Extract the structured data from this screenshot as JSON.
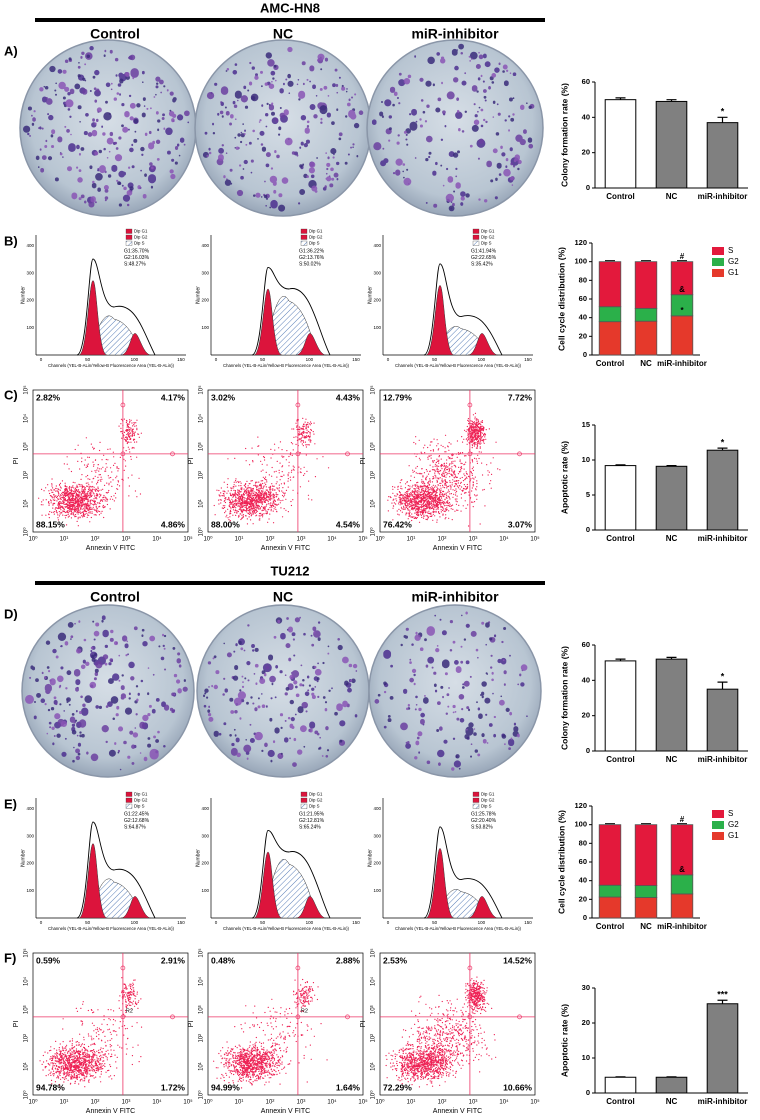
{
  "sections": [
    {
      "title": "AMC-HN8",
      "columns": [
        "Control",
        "NC",
        "miR-inhibitor"
      ],
      "colony": {
        "label": "A)",
        "chart": {
          "type": "bar",
          "ylabel": "Colony formation rate (%)",
          "categories": [
            "Control",
            "NC",
            "miR-inhibitor"
          ],
          "values": [
            50,
            49,
            37
          ],
          "errors": [
            1,
            1,
            3
          ],
          "colors": [
            "#ffffff",
            "#808080",
            "#808080"
          ],
          "ylim": [
            0,
            60
          ],
          "yticks": [
            0,
            20,
            40,
            60
          ],
          "annotations": [
            {
              "category": "miR-inhibitor",
              "text": "*"
            }
          ]
        }
      },
      "cycle": {
        "label": "B)",
        "legend": [
          "Dip G1",
          "Dip G2",
          "Dip S"
        ],
        "ylabel": "Number",
        "xlabel": "Channels (YEL-B-ALin/Yellow-B Fluorescence Area (YEL-B-ALin))",
        "xticks": [
          "0",
          "50",
          "100",
          "150"
        ],
        "yticks": [
          "100",
          "200",
          "300",
          "400"
        ],
        "histograms": [
          {
            "stats": [
              "G1:35.70%",
              "G2:16.03%",
              "S:48.27%"
            ]
          },
          {
            "stats": [
              "G1:36.22%",
              "G2:13.76%",
              "S:50.02%"
            ]
          },
          {
            "stats": [
              "G1:41.94%",
              "G2:22.65%",
              "S:35.42%"
            ]
          }
        ],
        "chart": {
          "type": "stacked-bar",
          "ylabel": "Cell cycle distribution (%)",
          "categories": [
            "Control",
            "NC",
            "miR-inhibitor"
          ],
          "ylim": [
            0,
            120
          ],
          "yticks": [
            0,
            20,
            40,
            60,
            80,
            100,
            120
          ],
          "series": [
            {
              "name": "G1",
              "color": "#e5392b",
              "values": [
                35.7,
                36.22,
                41.94
              ]
            },
            {
              "name": "G2",
              "color": "#2bb04a",
              "values": [
                16.03,
                13.76,
                22.65
              ]
            },
            {
              "name": "S",
              "color": "#e3193c",
              "values": [
                48.27,
                50.02,
                35.42
              ]
            }
          ],
          "annotations": [
            {
              "series": "S",
              "category": "miR-inhibitor",
              "text": "#"
            },
            {
              "series": "G2",
              "category": "miR-inhibitor",
              "text": "&"
            },
            {
              "series": "G1",
              "category": "miR-inhibitor",
              "text": "*"
            }
          ]
        }
      },
      "apoptosis": {
        "label": "C)",
        "xlabel": "Annexin V FITC",
        "ylabel": "PI",
        "ticks": [
          "10⁰",
          "10¹",
          "10²",
          "10³",
          "10⁴",
          "10⁵"
        ],
        "plots": [
          {
            "quadrants": [
              "2.82%",
              "4.17%",
              "88.15%",
              "4.86%"
            ]
          },
          {
            "quadrants": [
              "3.02%",
              "4.43%",
              "88.00%",
              "4.54%"
            ]
          },
          {
            "quadrants": [
              "12.79%",
              "7.72%",
              "76.42%",
              "3.07%"
            ]
          }
        ],
        "chart": {
          "type": "bar",
          "ylabel": "Apoptotic rate (%)",
          "categories": [
            "Control",
            "NC",
            "miR-inhibitor"
          ],
          "values": [
            9.2,
            9.1,
            11.4
          ],
          "errors": [
            0.1,
            0.1,
            0.3
          ],
          "colors": [
            "#ffffff",
            "#808080",
            "#808080"
          ],
          "ylim": [
            0,
            15
          ],
          "yticks": [
            0,
            5,
            10,
            15
          ],
          "annotations": [
            {
              "category": "miR-inhibitor",
              "text": "*"
            }
          ]
        }
      }
    },
    {
      "title": "TU212",
      "columns": [
        "Control",
        "NC",
        "miR-inhibitor"
      ],
      "colony": {
        "label": "D)",
        "chart": {
          "type": "bar",
          "ylabel": "Colony formation rate (%)",
          "categories": [
            "Control",
            "NC",
            "miR-inhibitor"
          ],
          "values": [
            51,
            52,
            35
          ],
          "errors": [
            1,
            1,
            4
          ],
          "colors": [
            "#ffffff",
            "#808080",
            "#808080"
          ],
          "ylim": [
            0,
            60
          ],
          "yticks": [
            0,
            20,
            40,
            60
          ],
          "annotations": [
            {
              "category": "miR-inhibitor",
              "text": "*"
            }
          ]
        }
      },
      "cycle": {
        "label": "E)",
        "legend": [
          "Dip G1",
          "Dip G2",
          "Dip S"
        ],
        "ylabel": "Number",
        "xlabel": "Channels (YEL-B-ALin/Yellow-B Fluorescence Area (YEL-B-ALin))",
        "xticks": [
          "0",
          "50",
          "100",
          "150"
        ],
        "yticks": [
          "100",
          "200",
          "300",
          "400"
        ],
        "histograms": [
          {
            "stats": [
              "G1:22.45%",
              "G2:12.68%",
              "S:64.87%"
            ]
          },
          {
            "stats": [
              "G1:21.95%",
              "G2:12.81%",
              "S:65.24%"
            ]
          },
          {
            "stats": [
              "G1:25.78%",
              "G2:20.40%",
              "S:53.82%"
            ]
          }
        ],
        "chart": {
          "type": "stacked-bar",
          "ylabel": "Cell cycle distribution (%)",
          "categories": [
            "Control",
            "NC",
            "miR-inhibitor"
          ],
          "ylim": [
            0,
            120
          ],
          "yticks": [
            0,
            20,
            40,
            60,
            80,
            100,
            120
          ],
          "series": [
            {
              "name": "G1",
              "color": "#e5392b",
              "values": [
                22.45,
                21.95,
                25.78
              ]
            },
            {
              "name": "G2",
              "color": "#2bb04a",
              "values": [
                12.68,
                12.81,
                20.4
              ]
            },
            {
              "name": "S",
              "color": "#e3193c",
              "values": [
                64.87,
                65.24,
                53.82
              ]
            }
          ],
          "annotations": [
            {
              "series": "S",
              "category": "miR-inhibitor",
              "text": "#"
            },
            {
              "series": "G2",
              "category": "miR-inhibitor",
              "text": "&"
            }
          ]
        }
      },
      "apoptosis": {
        "label": "F)",
        "xlabel": "Annexin V FITC",
        "ylabel": "PI",
        "ticks": [
          "10⁰",
          "10¹",
          "10²",
          "10³",
          "10⁴",
          "10⁵"
        ],
        "plots": [
          {
            "quadrants": [
              "0.59%",
              "2.91%",
              "94.78%",
              "1.72%"
            ],
            "gate": "R2"
          },
          {
            "quadrants": [
              "0.48%",
              "2.88%",
              "94.99%",
              "1.64%"
            ],
            "gate": "R2"
          },
          {
            "quadrants": [
              "2.53%",
              "14.52%",
              "72.29%",
              "10.66%"
            ]
          }
        ],
        "chart": {
          "type": "bar",
          "ylabel": "Apoptotic rate (%)",
          "categories": [
            "Control",
            "NC",
            "miR-inhibitor"
          ],
          "values": [
            4.5,
            4.5,
            25.5
          ],
          "errors": [
            0.1,
            0.1,
            1
          ],
          "colors": [
            "#ffffff",
            "#808080",
            "#808080"
          ],
          "ylim": [
            0,
            30
          ],
          "yticks": [
            0,
            10,
            20,
            30
          ],
          "annotations": [
            {
              "category": "miR-inhibitor",
              "text": "***"
            }
          ]
        }
      }
    }
  ]
}
